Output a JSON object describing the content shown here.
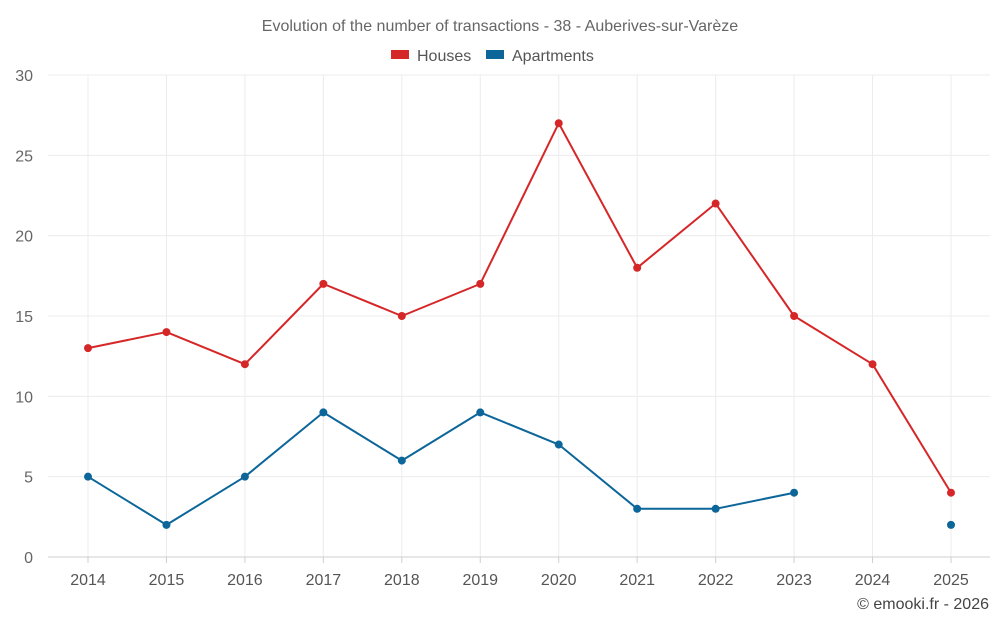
{
  "chart_data": {
    "type": "line",
    "title": "Evolution of the number of transactions - 38 - Auberives-sur-Varèze",
    "categories": [
      "2014",
      "2015",
      "2016",
      "2017",
      "2018",
      "2019",
      "2020",
      "2021",
      "2022",
      "2023",
      "2024",
      "2025"
    ],
    "series": [
      {
        "name": "Houses",
        "color": "#d62728",
        "values": [
          13,
          14,
          12,
          17,
          15,
          17,
          27,
          18,
          22,
          15,
          12,
          4
        ]
      },
      {
        "name": "Apartments",
        "color": "#0d6699",
        "values": [
          5,
          2,
          5,
          9,
          6,
          9,
          7,
          3,
          3,
          4,
          null,
          2
        ]
      }
    ],
    "ylim": [
      0,
      30
    ],
    "yticks": [
      0,
      5,
      10,
      15,
      20,
      25,
      30
    ],
    "xlabel": "",
    "ylabel": "",
    "grid": true,
    "legend_position": "top-center"
  },
  "credit": "© emooki.fr - 2026"
}
